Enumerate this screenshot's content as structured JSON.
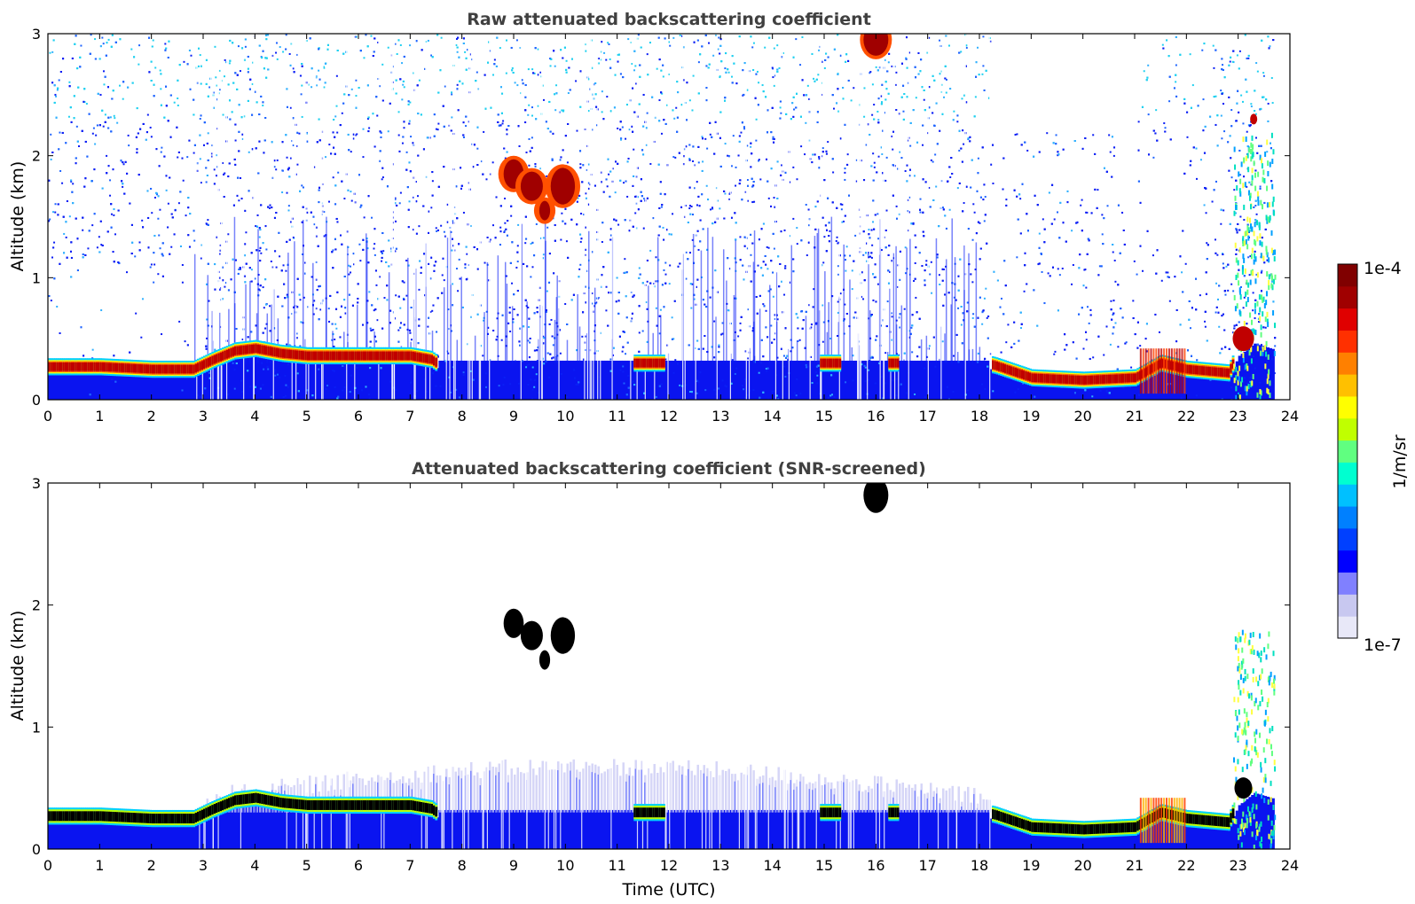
{
  "chart_data": [
    {
      "type": "heatmap",
      "title": "Raw attenuated backscattering coefficient",
      "xlabel": "",
      "ylabel": "Altitude (km)",
      "xlim": [
        0,
        24
      ],
      "ylim": [
        0,
        3
      ],
      "x_ticks": [
        "0",
        "1",
        "2",
        "3",
        "4",
        "5",
        "6",
        "7",
        "8",
        "9",
        "10",
        "11",
        "12",
        "13",
        "14",
        "15",
        "16",
        "17",
        "18",
        "19",
        "20",
        "21",
        "22",
        "23",
        "24"
      ],
      "y_ticks": [
        "0",
        "1",
        "2",
        "3"
      ],
      "features": [
        {
          "name": "boundary layer top (red band)",
          "x": [
            0,
            1,
            2,
            2.8,
            3.5,
            4,
            5,
            6,
            7,
            7.4
          ],
          "y": [
            0.27,
            0.27,
            0.25,
            0.25,
            0.38,
            0.42,
            0.36,
            0.36,
            0.36,
            0.33
          ]
        },
        {
          "name": "boundary layer top (red band, evening)",
          "x": [
            18.2,
            19,
            20,
            21,
            21.5,
            22,
            22.8
          ],
          "y": [
            0.28,
            0.18,
            0.16,
            0.18,
            0.3,
            0.25,
            0.22
          ]
        },
        {
          "name": "cloud",
          "x": [
            9.0,
            9.5,
            10.0
          ],
          "y": [
            1.85,
            1.65,
            1.75
          ]
        },
        {
          "name": "cloud",
          "x": [
            15.9,
            16.2
          ],
          "y": [
            2.9,
            2.8
          ]
        }
      ]
    },
    {
      "type": "heatmap",
      "title": "Attenuated backscattering coefficient (SNR-screened)",
      "xlabel": "Time (UTC)",
      "ylabel": "Altitude (km)",
      "xlim": [
        0,
        24
      ],
      "ylim": [
        0,
        3
      ],
      "x_ticks": [
        "0",
        "1",
        "2",
        "3",
        "4",
        "5",
        "6",
        "7",
        "8",
        "9",
        "10",
        "11",
        "12",
        "13",
        "14",
        "15",
        "16",
        "17",
        "18",
        "19",
        "20",
        "21",
        "22",
        "23",
        "24"
      ],
      "y_ticks": [
        "0",
        "1",
        "2",
        "3"
      ]
    }
  ],
  "colorbar": {
    "label": "1/m/sr",
    "max_label": "1e-4",
    "min_label": "1e-7",
    "colors": [
      "#e8e8f8",
      "#c8c8f0",
      "#8080ff",
      "#0000ff",
      "#0040ff",
      "#0080ff",
      "#00c0ff",
      "#00ffd0",
      "#60ff80",
      "#c0ff00",
      "#ffff00",
      "#ffc000",
      "#ff8000",
      "#ff3000",
      "#e00000",
      "#a00000",
      "#800000"
    ]
  }
}
